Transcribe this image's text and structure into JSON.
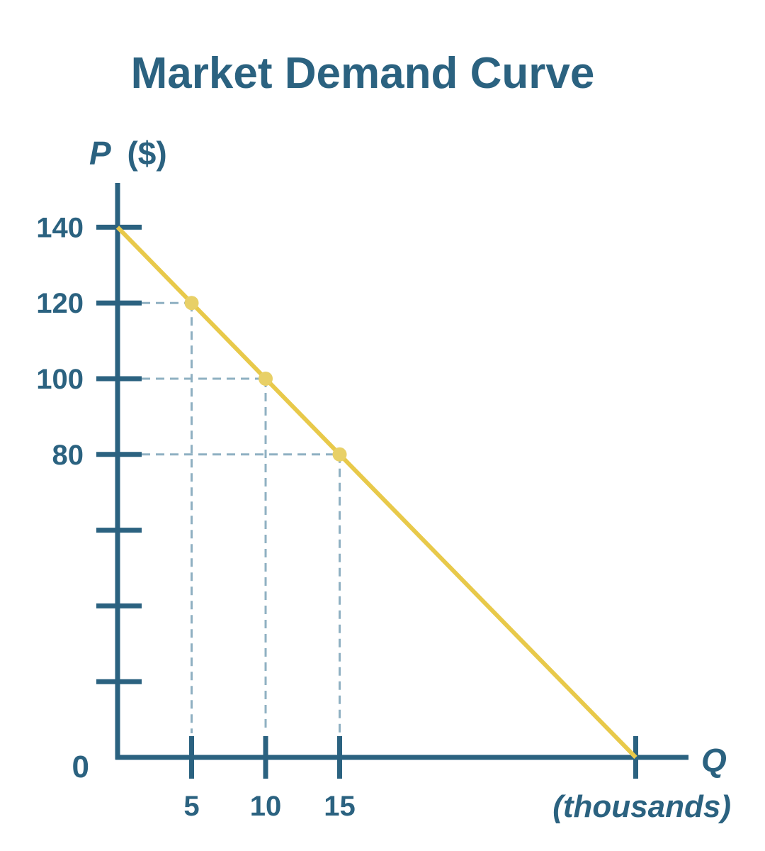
{
  "chart_data": {
    "type": "line",
    "title": "Market Demand Curve",
    "ylabel_var": "P",
    "ylabel_unit": "($)",
    "xlabel_var": "Q",
    "xlabel_unit": "(thousands)",
    "xlim": [
      0,
      40
    ],
    "ylim": [
      0,
      140
    ],
    "y_ticks": [
      0,
      20,
      40,
      60,
      80,
      100,
      120,
      140
    ],
    "y_tick_labels": [
      "0",
      "",
      "",
      "",
      "80",
      "100",
      "120",
      "140"
    ],
    "x_ticks": [
      5,
      10,
      15,
      35
    ],
    "x_tick_labels": [
      "5",
      "10",
      "15",
      ""
    ],
    "grid": false,
    "series": [
      {
        "x": [
          0,
          5,
          10,
          15,
          35
        ],
        "y": [
          140,
          120,
          100,
          80,
          0
        ]
      }
    ],
    "highlight_points": [
      {
        "x": 5,
        "y": 120
      },
      {
        "x": 10,
        "y": 100
      },
      {
        "x": 15,
        "y": 80
      }
    ],
    "colors": {
      "axis": "#2b6280",
      "line": "#e8c94a",
      "point": "#e8d067",
      "guide": "#8fb0c2"
    }
  }
}
